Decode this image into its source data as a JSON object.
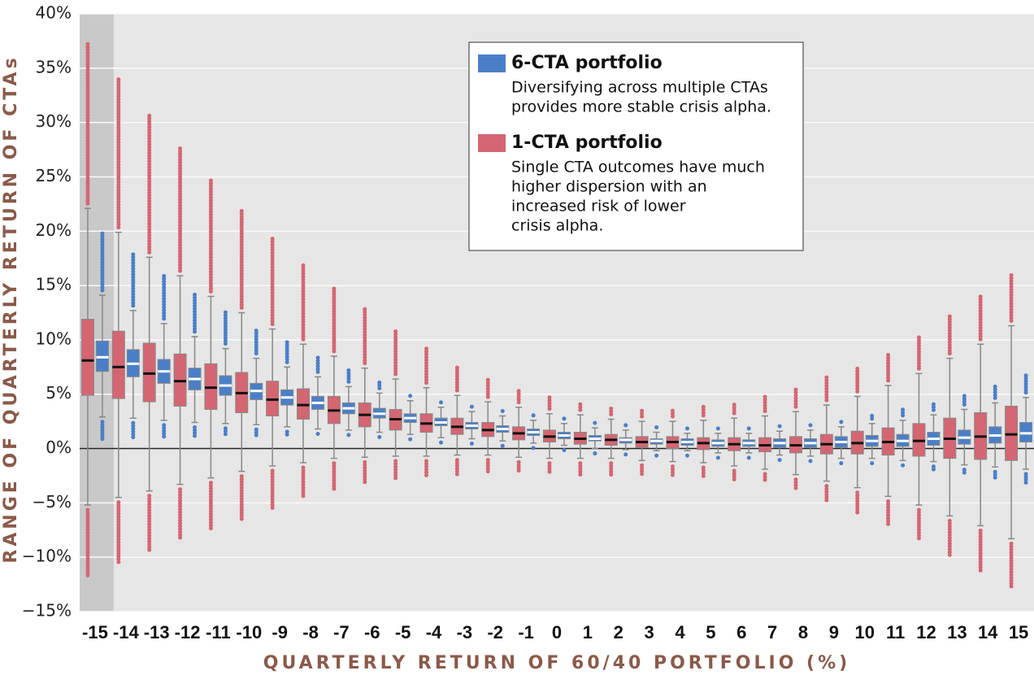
{
  "chart_data": {
    "type": "box",
    "xlabel": "QUARTERLY RETURN OF 60/40 PORTFOLIO (%)",
    "ylabel": "RANGE OF QUARTERLY RETURN OF CTAs",
    "categories": [
      "-15",
      "-14",
      "-13",
      "-12",
      "-11",
      "-10",
      "-9",
      "-8",
      "-7",
      "-6",
      "-5",
      "-4",
      "-3",
      "-2",
      "-1",
      "0",
      "1",
      "2",
      "3",
      "4",
      "5",
      "6",
      "7",
      "8",
      "9",
      "10",
      "11",
      "12",
      "13",
      "14",
      "15"
    ],
    "highlighted_category_index": 0,
    "ylim": [
      -15,
      40
    ],
    "yticks": [
      {
        "value": -15,
        "label": "−15%"
      },
      {
        "value": -10,
        "label": "−10%"
      },
      {
        "value": -5,
        "label": "−5%"
      },
      {
        "value": 0,
        "label": "0%"
      },
      {
        "value": 5,
        "label": "5%"
      },
      {
        "value": 10,
        "label": "10%"
      },
      {
        "value": 15,
        "label": "15%"
      },
      {
        "value": 20,
        "label": "20%"
      },
      {
        "value": 25,
        "label": "25%"
      },
      {
        "value": 30,
        "label": "30%"
      },
      {
        "value": 35,
        "label": "35%"
      },
      {
        "value": 40,
        "label": "40%"
      }
    ],
    "grid": true,
    "series": [
      {
        "name": "6-CTA portfolio",
        "color": "#4a7fc8",
        "median_color": "#ffffff",
        "description": [
          "Diversifying across multiple CTAs",
          "provides more stable crisis alpha."
        ],
        "median": [
          8.4,
          7.8,
          7.1,
          6.4,
          5.8,
          5.3,
          4.7,
          4.2,
          3.7,
          3.2,
          2.8,
          2.4,
          2.1,
          1.8,
          1.5,
          1.2,
          0.9,
          0.8,
          0.7,
          0.6,
          0.5,
          0.5,
          0.5,
          0.5,
          0.6,
          0.7,
          0.7,
          0.9,
          1.0,
          1.2,
          1.4
        ],
        "q1": [
          7.1,
          6.6,
          6.0,
          5.4,
          4.9,
          4.5,
          4.0,
          3.6,
          3.2,
          2.8,
          2.4,
          2.1,
          1.8,
          1.5,
          1.2,
          0.9,
          0.7,
          0.5,
          0.4,
          0.3,
          0.2,
          0.2,
          0.1,
          0.1,
          0.1,
          0.2,
          0.2,
          0.3,
          0.4,
          0.5,
          0.6
        ],
        "q3": [
          9.9,
          9.1,
          8.2,
          7.4,
          6.7,
          6.0,
          5.4,
          4.8,
          4.2,
          3.7,
          3.2,
          2.8,
          2.4,
          2.1,
          1.8,
          1.5,
          1.2,
          1.0,
          0.9,
          0.9,
          0.8,
          0.8,
          0.9,
          0.9,
          1.1,
          1.2,
          1.3,
          1.5,
          1.7,
          2.0,
          2.4
        ],
        "whisker_low": [
          2.9,
          2.8,
          2.6,
          2.4,
          2.3,
          2.2,
          2.0,
          1.8,
          1.7,
          1.5,
          1.3,
          1.0,
          0.9,
          0.7,
          0.5,
          0.3,
          0.0,
          -0.1,
          -0.2,
          -0.2,
          -0.4,
          -0.4,
          -0.6,
          -0.7,
          -0.9,
          -0.9,
          -1.1,
          -1.2,
          -1.5,
          -1.7,
          -1.9
        ],
        "whisker_high": [
          14.1,
          12.7,
          11.5,
          10.3,
          9.2,
          8.3,
          7.5,
          6.6,
          5.7,
          5.1,
          4.4,
          3.8,
          3.4,
          3.0,
          2.6,
          2.3,
          1.9,
          1.7,
          1.5,
          1.4,
          1.4,
          1.4,
          1.6,
          1.7,
          2.0,
          2.3,
          2.6,
          3.1,
          3.6,
          4.2,
          4.7
        ],
        "outlier_min": [
          0.7,
          0.9,
          0.9,
          1.0,
          1.2,
          1.2,
          1.2,
          1.2,
          1.3,
          1.1,
          0.8,
          0.6,
          0.5,
          0.4,
          0.2,
          0.0,
          -0.3,
          -0.4,
          -0.5,
          -0.5,
          -0.7,
          -0.7,
          -1.0,
          -1.3,
          -1.5,
          -1.5,
          -1.8,
          -2.0,
          -2.3,
          -2.7,
          -3.3
        ],
        "outlier_max": [
          19.8,
          17.9,
          16.1,
          14.3,
          12.7,
          11.1,
          9.8,
          8.5,
          7.2,
          6.1,
          5.1,
          4.5,
          4.0,
          3.6,
          3.2,
          2.8,
          2.3,
          2.0,
          1.8,
          1.8,
          1.7,
          1.7,
          1.9,
          2.2,
          2.6,
          3.1,
          3.6,
          4.3,
          5.0,
          5.8,
          6.8
        ]
      },
      {
        "name": "1-CTA portfolio",
        "color": "#d46672",
        "median_color": "#111111",
        "description": [
          "Single CTA outcomes have much",
          "higher dispersion with an",
          "increased risk of lower",
          "crisis alpha."
        ],
        "median": [
          8.1,
          7.5,
          6.9,
          6.2,
          5.6,
          5.1,
          4.5,
          4.0,
          3.5,
          3.1,
          2.7,
          2.3,
          2.0,
          1.7,
          1.4,
          1.1,
          0.9,
          0.8,
          0.6,
          0.6,
          0.5,
          0.4,
          0.3,
          0.3,
          0.4,
          0.5,
          0.6,
          0.7,
          0.9,
          1.1,
          1.3
        ],
        "q1": [
          4.9,
          4.6,
          4.3,
          3.9,
          3.6,
          3.3,
          3.0,
          2.7,
          2.3,
          2.0,
          1.7,
          1.5,
          1.3,
          1.1,
          0.8,
          0.6,
          0.4,
          0.3,
          0.1,
          0.0,
          -0.1,
          -0.2,
          -0.3,
          -0.4,
          -0.5,
          -0.5,
          -0.6,
          -0.7,
          -0.9,
          -1.0,
          -1.1
        ],
        "q3": [
          11.9,
          10.8,
          9.7,
          8.7,
          7.8,
          7.0,
          6.2,
          5.5,
          4.8,
          4.2,
          3.6,
          3.2,
          2.8,
          2.4,
          2.0,
          1.7,
          1.5,
          1.3,
          1.1,
          1.1,
          1.0,
          1.0,
          1.0,
          1.1,
          1.3,
          1.6,
          1.9,
          2.3,
          2.8,
          3.3,
          3.9
        ],
        "whisker_low": [
          -5.2,
          -4.5,
          -3.9,
          -3.3,
          -2.7,
          -2.1,
          -1.6,
          -1.3,
          -0.9,
          -0.8,
          -0.7,
          -0.7,
          -0.6,
          -0.6,
          -0.8,
          -0.9,
          -0.9,
          -0.9,
          -1.1,
          -1.2,
          -1.3,
          -1.6,
          -1.9,
          -2.4,
          -3.0,
          -3.6,
          -4.4,
          -5.2,
          -6.2,
          -7.1,
          -8.3
        ],
        "whisker_high": [
          22.1,
          19.9,
          17.6,
          15.9,
          14.0,
          12.5,
          11.0,
          9.6,
          8.5,
          7.4,
          6.4,
          5.6,
          4.9,
          4.3,
          3.8,
          3.2,
          3.1,
          2.7,
          2.5,
          2.5,
          2.6,
          2.8,
          3.0,
          3.4,
          4.0,
          4.8,
          5.8,
          6.9,
          8.3,
          9.6,
          11.3
        ],
        "outlier_min": [
          -11.9,
          -10.5,
          -9.5,
          -8.4,
          -7.4,
          -6.5,
          -5.6,
          -4.6,
          -3.9,
          -3.1,
          -2.8,
          -2.5,
          -2.4,
          -2.3,
          -2.1,
          -2.3,
          -2.6,
          -2.5,
          -2.4,
          -2.6,
          -2.7,
          -2.9,
          -3.1,
          -3.8,
          -4.8,
          -5.9,
          -7.0,
          -8.5,
          -9.9,
          -11.3,
          -12.8
        ],
        "outlier_max": [
          37.3,
          34.0,
          30.7,
          27.7,
          24.7,
          22.0,
          19.4,
          17.0,
          14.9,
          12.9,
          11.0,
          9.2,
          7.7,
          6.5,
          5.5,
          4.9,
          4.2,
          3.9,
          3.6,
          3.6,
          3.9,
          4.2,
          4.9,
          5.6,
          6.6,
          7.6,
          8.8,
          10.4,
          12.2,
          14.1,
          16.0
        ]
      }
    ]
  }
}
